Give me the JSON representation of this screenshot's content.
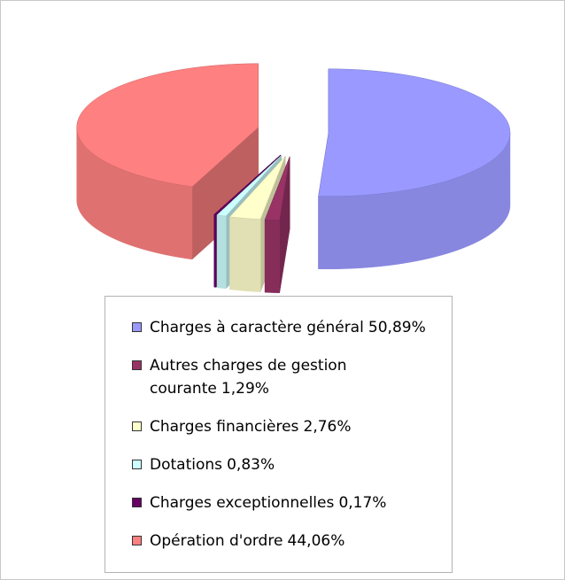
{
  "chart_data": {
    "type": "pie3d",
    "categories": [
      "Charges à caractère général",
      "Autres charges de gestion courante",
      "Charges financières",
      "Dotations",
      "Charges exceptionnelles",
      "Opération d'ordre"
    ],
    "values": [
      50.89,
      1.29,
      2.76,
      0.83,
      0.17,
      44.06
    ],
    "value_labels": [
      "50,89%",
      "1,29%",
      "2,76%",
      "0,83%",
      "0,17%",
      "44,06%"
    ],
    "colors": [
      "#9999ff",
      "#993366",
      "#ffffcc",
      "#ccffff",
      "#660066",
      "#ff8080"
    ]
  }
}
